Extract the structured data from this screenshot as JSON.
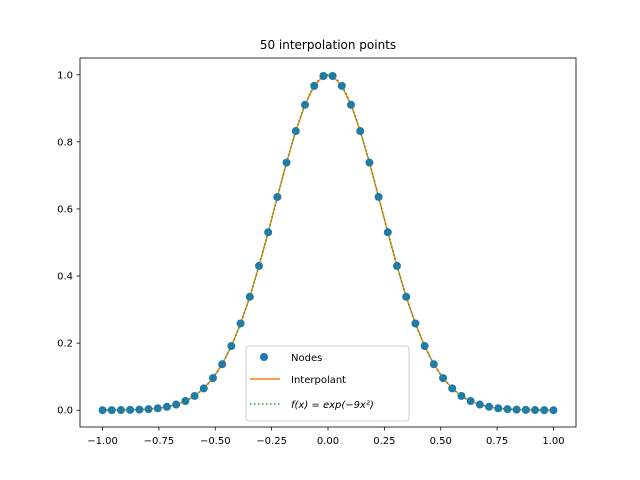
{
  "chart_data": {
    "type": "line",
    "title": "50 interpolation points",
    "xlabel": "",
    "ylabel": "",
    "xlim": [
      -1.1,
      1.1
    ],
    "ylim": [
      -0.05,
      1.05
    ],
    "x_ticks": [
      -1.0,
      -0.75,
      -0.5,
      -0.25,
      0.0,
      0.25,
      0.5,
      0.75,
      1.0
    ],
    "x_tick_labels": [
      "−1.00",
      "−0.75",
      "−0.50",
      "−0.25",
      "0.00",
      "0.25",
      "0.50",
      "0.75",
      "1.00"
    ],
    "y_ticks": [
      0.0,
      0.2,
      0.4,
      0.6,
      0.8,
      1.0
    ],
    "y_tick_labels": [
      "0.0",
      "0.2",
      "0.4",
      "0.6",
      "0.8",
      "1.0"
    ],
    "grid": false,
    "legend_position": "bottom-center",
    "series": [
      {
        "name": "Nodes",
        "kind": "markers",
        "color": "#1f77b4",
        "x": [
          -1.0,
          -0.9592,
          -0.9184,
          -0.8776,
          -0.8367,
          -0.7959,
          -0.7551,
          -0.7143,
          -0.6735,
          -0.6327,
          -0.5918,
          -0.551,
          -0.5102,
          -0.4694,
          -0.4286,
          -0.3878,
          -0.3469,
          -0.3061,
          -0.2653,
          -0.2245,
          -0.1837,
          -0.1429,
          -0.102,
          -0.0612,
          -0.0204,
          0.0204,
          0.0612,
          0.102,
          0.1429,
          0.1837,
          0.2245,
          0.2653,
          0.3061,
          0.3469,
          0.3878,
          0.4286,
          0.4694,
          0.5102,
          0.551,
          0.5918,
          0.6327,
          0.6735,
          0.7143,
          0.7551,
          0.7959,
          0.8367,
          0.8776,
          0.9184,
          0.9592,
          1.0
        ],
        "y": [
          0.0001,
          0.0003,
          0.0005,
          0.001,
          0.0018,
          0.0033,
          0.0059,
          0.0102,
          0.0169,
          0.0274,
          0.0426,
          0.0651,
          0.0958,
          0.1372,
          0.1914,
          0.2585,
          0.3383,
          0.4302,
          0.5305,
          0.6357,
          0.7382,
          0.8322,
          0.9105,
          0.9669,
          0.9963,
          0.9963,
          0.9669,
          0.9105,
          0.8322,
          0.7382,
          0.6357,
          0.5305,
          0.4302,
          0.3383,
          0.2585,
          0.1914,
          0.1372,
          0.0958,
          0.0651,
          0.0426,
          0.0274,
          0.0169,
          0.0102,
          0.0059,
          0.0033,
          0.0018,
          0.001,
          0.0005,
          0.0003,
          0.0001
        ]
      },
      {
        "name": "Interpolant",
        "kind": "line",
        "color": "#ff7f0e"
      },
      {
        "name": "f(x) = exp(−9x²)",
        "kind": "dotted",
        "color": "#2ca02c"
      }
    ],
    "legend": {
      "items": [
        "Nodes",
        "Interpolant",
        "f(x) = exp(−9x²)"
      ]
    }
  }
}
